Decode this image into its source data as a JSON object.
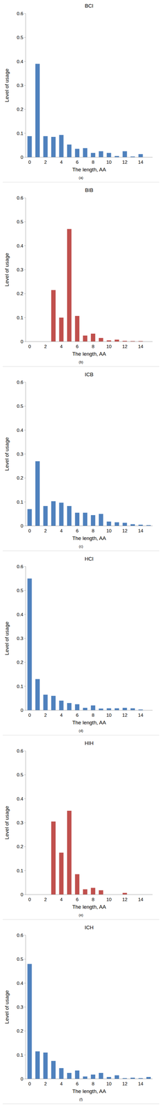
{
  "chart_data": [
    {
      "type": "bar",
      "title": "BCI",
      "caption": "(a)",
      "x_label": "The length, AA",
      "y_label": "Level of usage",
      "categories": [
        "0",
        null,
        "2",
        null,
        "4",
        null,
        "6",
        null,
        "8",
        null,
        "10",
        null,
        "12",
        null,
        "14",
        null
      ],
      "values": [
        0.088,
        0.39,
        0.088,
        0.085,
        0.093,
        0.053,
        0.035,
        0.038,
        0.018,
        0.025,
        0.018,
        0.005,
        0.025,
        0.003,
        0.013,
        0
      ],
      "color": "#4f81bd",
      "ylim": [
        0,
        0.6
      ],
      "yticks": [
        0,
        0.1,
        0.2,
        0.3,
        0.4,
        0.5,
        0.6
      ],
      "grid": false
    },
    {
      "type": "bar",
      "title": "BIB",
      "caption": "(b)",
      "x_label": "The length, AA",
      "y_label": "Level of usage",
      "categories": [
        "0",
        null,
        "2",
        null,
        "4",
        null,
        "6",
        null,
        "8",
        null,
        "10",
        null,
        "12",
        null,
        "14",
        null
      ],
      "values": [
        0,
        0,
        0,
        0.215,
        0.1,
        0.47,
        0.107,
        0.025,
        0.033,
        0.015,
        0.005,
        0.008,
        0.003,
        0.002,
        0.002,
        0
      ],
      "color": "#c0504d",
      "ylim": [
        0,
        0.6
      ],
      "yticks": [
        0,
        0.1,
        0.2,
        0.3,
        0.4,
        0.5,
        0.6
      ],
      "grid": false
    },
    {
      "type": "bar",
      "title": "ICB",
      "caption": "(c)",
      "x_label": "The length, AA",
      "y_label": "Level of usage",
      "categories": [
        "0",
        null,
        "2",
        null,
        "4",
        null,
        "6",
        null,
        "8",
        null,
        "10",
        null,
        "12",
        null,
        "14",
        null
      ],
      "values": [
        0.07,
        0.27,
        0.083,
        0.103,
        0.097,
        0.083,
        0.055,
        0.055,
        0.045,
        0.05,
        0.018,
        0.015,
        0.013,
        0.007,
        0.005,
        0.003
      ],
      "color": "#4f81bd",
      "ylim": [
        0,
        0.6
      ],
      "yticks": [
        0,
        0.1,
        0.2,
        0.3,
        0.4,
        0.5,
        0.6
      ],
      "grid": false
    },
    {
      "type": "bar",
      "title": "HCI",
      "caption": "(d)",
      "x_label": "The length, AA",
      "y_label": "Level of usage",
      "categories": [
        "0",
        null,
        "2",
        null,
        "4",
        null,
        "6",
        null,
        "8",
        null,
        "10",
        null,
        "12",
        null,
        "14",
        null
      ],
      "values": [
        0.55,
        0.13,
        0.065,
        0.06,
        0.04,
        0.03,
        0.025,
        0.01,
        0.02,
        0.007,
        0.008,
        0.008,
        0.01,
        0.008,
        0.003,
        0
      ],
      "color": "#4f81bd",
      "ylim": [
        0,
        0.6
      ],
      "yticks": [
        0,
        0.1,
        0.2,
        0.3,
        0.4,
        0.5,
        0.6
      ],
      "grid": false
    },
    {
      "type": "bar",
      "title": "HIH",
      "caption": "(e)",
      "x_label": "The length, AA",
      "y_label": "Level of usage",
      "categories": [
        "0",
        null,
        "2",
        null,
        "4",
        null,
        "6",
        null,
        "8",
        null,
        "10",
        null,
        "12",
        null,
        "14",
        null
      ],
      "values": [
        0,
        0,
        0,
        0.305,
        0.175,
        0.35,
        0.085,
        0.022,
        0.028,
        0.018,
        0,
        0,
        0.007,
        0,
        0,
        0
      ],
      "color": "#c0504d",
      "ylim": [
        0,
        0.6
      ],
      "yticks": [
        0,
        0.1,
        0.2,
        0.3,
        0.4,
        0.5,
        0.6
      ],
      "grid": false
    },
    {
      "type": "bar",
      "title": "ICH",
      "caption": "(f)",
      "x_label": "The length, AA",
      "y_label": "Level of usage",
      "categories": [
        "0",
        null,
        "2",
        null,
        "4",
        null,
        "6",
        null,
        "8",
        null,
        "10",
        null,
        "12",
        null,
        "14",
        null
      ],
      "values": [
        0.48,
        0.115,
        0.11,
        0.075,
        0.045,
        0.025,
        0.035,
        0.01,
        0.018,
        0.025,
        0.008,
        0.015,
        0.003,
        0.005,
        0.003,
        0.008
      ],
      "color": "#4f81bd",
      "ylim": [
        0,
        0.6
      ],
      "yticks": [
        0,
        0.1,
        0.2,
        0.3,
        0.4,
        0.5,
        0.6
      ],
      "grid": false
    }
  ]
}
